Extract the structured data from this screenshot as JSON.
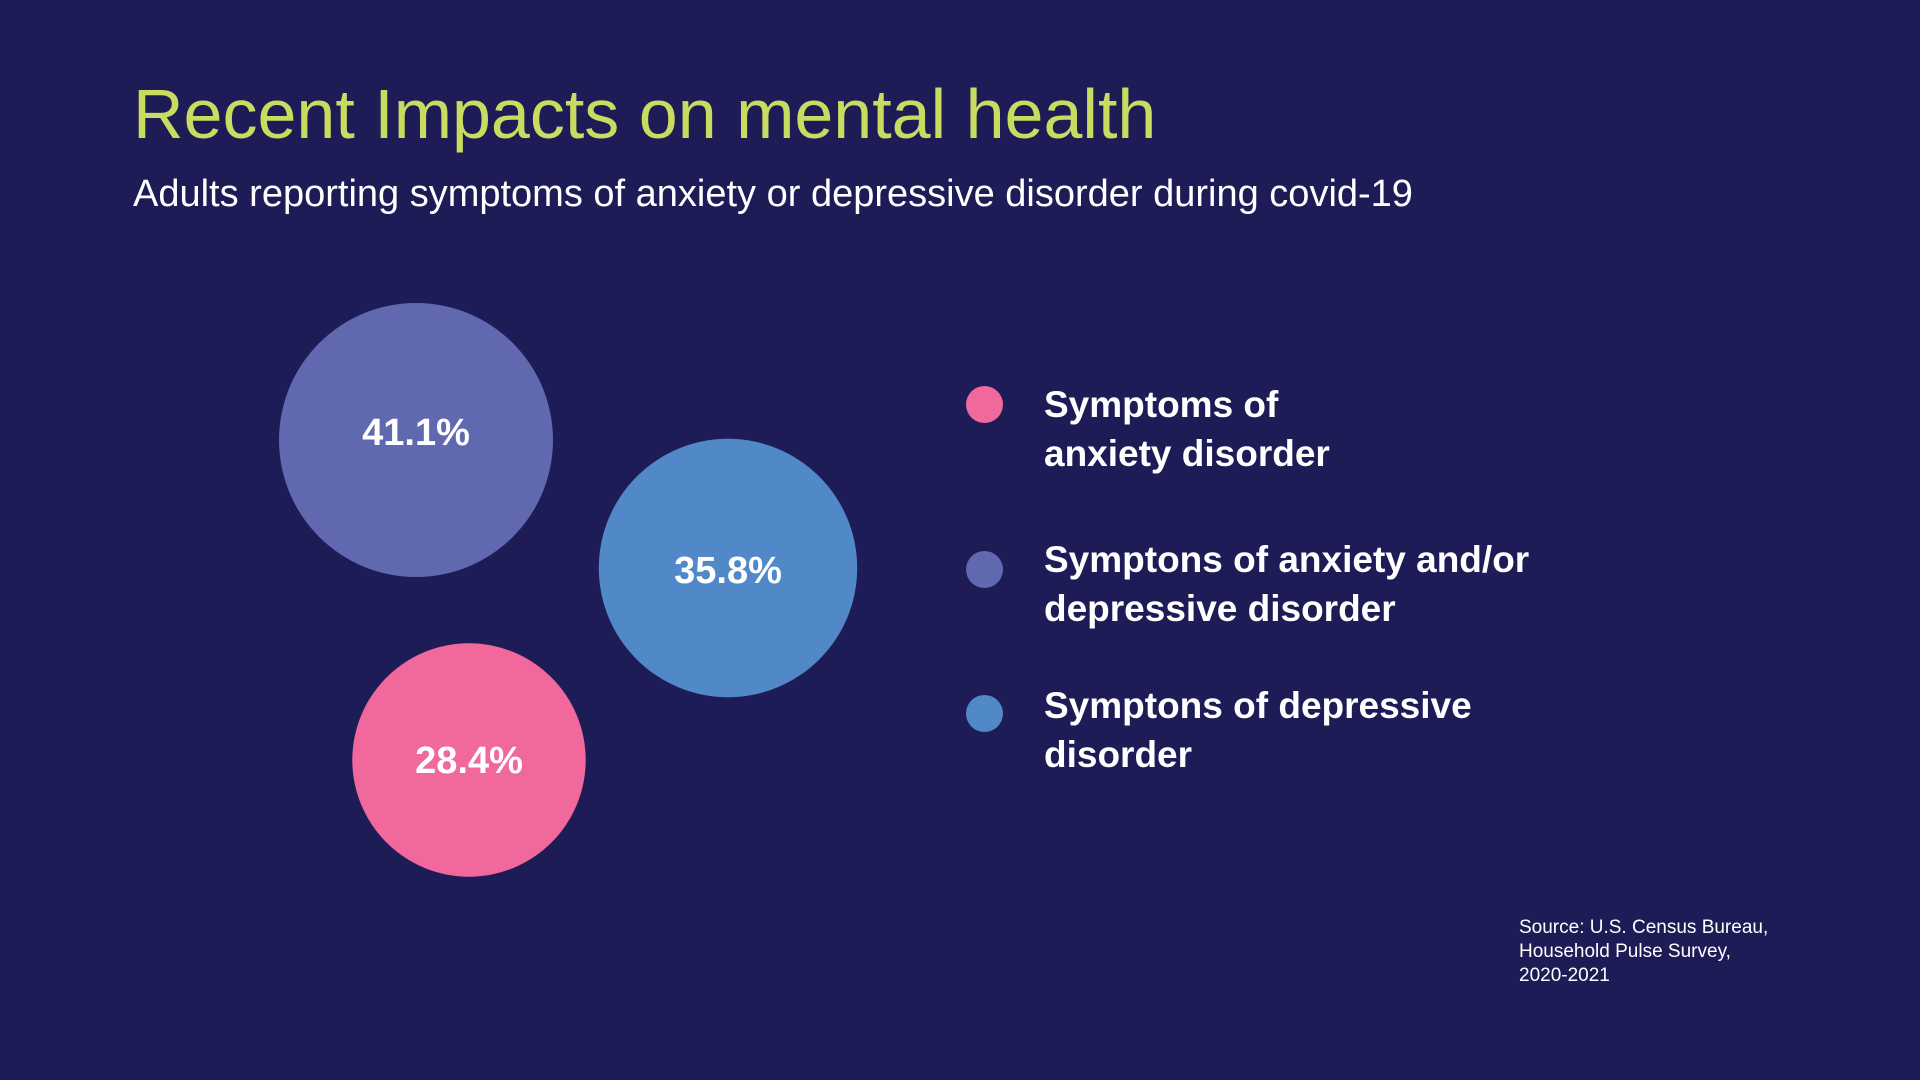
{
  "header": {
    "title": "Recent Impacts on mental health",
    "subtitle": "Adults reporting symptoms of anxiety or depressive disorder during covid-19"
  },
  "chart_data": {
    "type": "bubble",
    "title": "Recent Impacts on mental health",
    "subtitle": "Adults reporting symptoms of anxiety or depressive disorder during covid-19",
    "series": [
      {
        "name": "Symptoms of\nanxiety disorder",
        "value": 28.4,
        "label": "28.4%",
        "color": "#f0689c"
      },
      {
        "name": "Symptons of anxiety and/or\ndepressive disorder",
        "value": 41.1,
        "label": "41.1%",
        "color": "#6068b0"
      },
      {
        "name": "Symptons of depressive\ndisorder",
        "value": 35.8,
        "label": "35.8%",
        "color": "#5088c8"
      }
    ],
    "legend_position": "right"
  },
  "source": {
    "text": "Source: U.S. Census Bureau,\nHousehold Pulse Survey,\n2020-2021"
  }
}
